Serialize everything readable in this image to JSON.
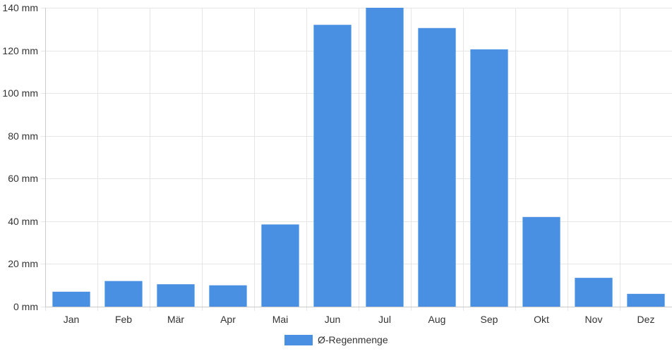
{
  "chart_data": {
    "type": "bar",
    "categories": [
      "Jan",
      "Feb",
      "Mär",
      "Apr",
      "Mai",
      "Jun",
      "Jul",
      "Aug",
      "Sep",
      "Okt",
      "Nov",
      "Dez"
    ],
    "series": [
      {
        "name": "Ø-Regenmenge",
        "values": [
          7,
          12,
          10.5,
          10,
          38.5,
          132,
          140,
          130.5,
          120.5,
          42,
          13.5,
          6
        ],
        "color": "#4a90e2"
      }
    ],
    "title": "",
    "xlabel": "",
    "ylabel": "",
    "ylim": [
      0,
      140
    ],
    "yticks": [
      0,
      20,
      40,
      60,
      80,
      100,
      120,
      140
    ],
    "y_tick_suffix": " mm",
    "grid": true,
    "legend_position": "bottom-center",
    "colors": {
      "bar": "#4a90e2",
      "grid": "#e6e6e6",
      "axis": "#cccccc",
      "text": "#333333"
    }
  }
}
